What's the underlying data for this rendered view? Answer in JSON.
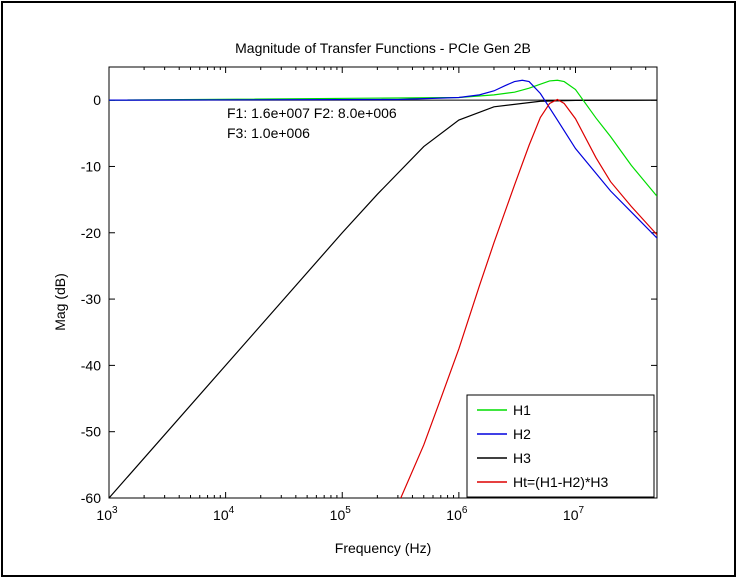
{
  "chart_data": {
    "type": "line",
    "title": "Magnitude of Transfer Functions - PCIe Gen 2B",
    "xlabel": "Frequency (Hz)",
    "ylabel": "Mag (dB)",
    "x_scale": "log",
    "xlim": [
      1000,
      50000000
    ],
    "ylim": [
      -60,
      5
    ],
    "grid": false,
    "legend_position": "bottom-right",
    "x_ticks": [
      {
        "base": "10",
        "exp": "3"
      },
      {
        "base": "10",
        "exp": "4"
      },
      {
        "base": "10",
        "exp": "5"
      },
      {
        "base": "10",
        "exp": "6"
      },
      {
        "base": "10",
        "exp": "7"
      }
    ],
    "y_ticks": [
      "0",
      "-10",
      "-20",
      "-30",
      "-40",
      "-50",
      "-60"
    ],
    "annotation_lines": [
      "F1: 1.6e+007 F2: 8.0e+006",
      "F3: 1.0e+006"
    ],
    "reference_line_db": 0,
    "series": [
      {
        "name": "H1",
        "color": "#00dd00",
        "x": [
          1000,
          1000000,
          2000000,
          3000000,
          4000000,
          5000000,
          6000000,
          7000000,
          8000000,
          10000000,
          15000000,
          20000000,
          30000000,
          50000000
        ],
        "y": [
          0,
          0.4,
          0.8,
          1.2,
          1.8,
          2.4,
          2.9,
          3.0,
          2.8,
          1.6,
          -2.7,
          -5.5,
          -9.8,
          -14.5
        ]
      },
      {
        "name": "H2",
        "color": "#0000dd",
        "x": [
          1000,
          300000,
          1000000,
          1500000,
          2000000,
          2500000,
          3000000,
          3500000,
          4000000,
          5000000,
          7000000,
          10000000,
          20000000,
          50000000
        ],
        "y": [
          0,
          0.1,
          0.4,
          0.8,
          1.4,
          2.2,
          2.8,
          3.0,
          2.8,
          1.0,
          -3.0,
          -7.3,
          -13.7,
          -20.8
        ]
      },
      {
        "name": "H3",
        "color": "#000000",
        "x": [
          1000,
          10000,
          100000,
          200000,
          500000,
          1000000,
          2000000,
          5000000,
          10000000,
          50000000
        ],
        "y": [
          -60,
          -40,
          -20,
          -14.2,
          -7.0,
          -3.0,
          -1.0,
          -0.17,
          -0.04,
          0
        ]
      },
      {
        "name": "Ht=(H1-H2)*H3",
        "color": "#dd0000",
        "x": [
          300000,
          500000,
          700000,
          1000000,
          1500000,
          2000000,
          3000000,
          4000000,
          5000000,
          6000000,
          7000000,
          8000000,
          10000000,
          15000000,
          20000000,
          30000000,
          50000000
        ],
        "y": [
          -61,
          -52,
          -45,
          -37.5,
          -28,
          -21.5,
          -12.8,
          -6.8,
          -2.6,
          -0.5,
          0.1,
          -0.5,
          -2.8,
          -8.7,
          -12.3,
          -16.0,
          -20.3
        ]
      }
    ]
  }
}
